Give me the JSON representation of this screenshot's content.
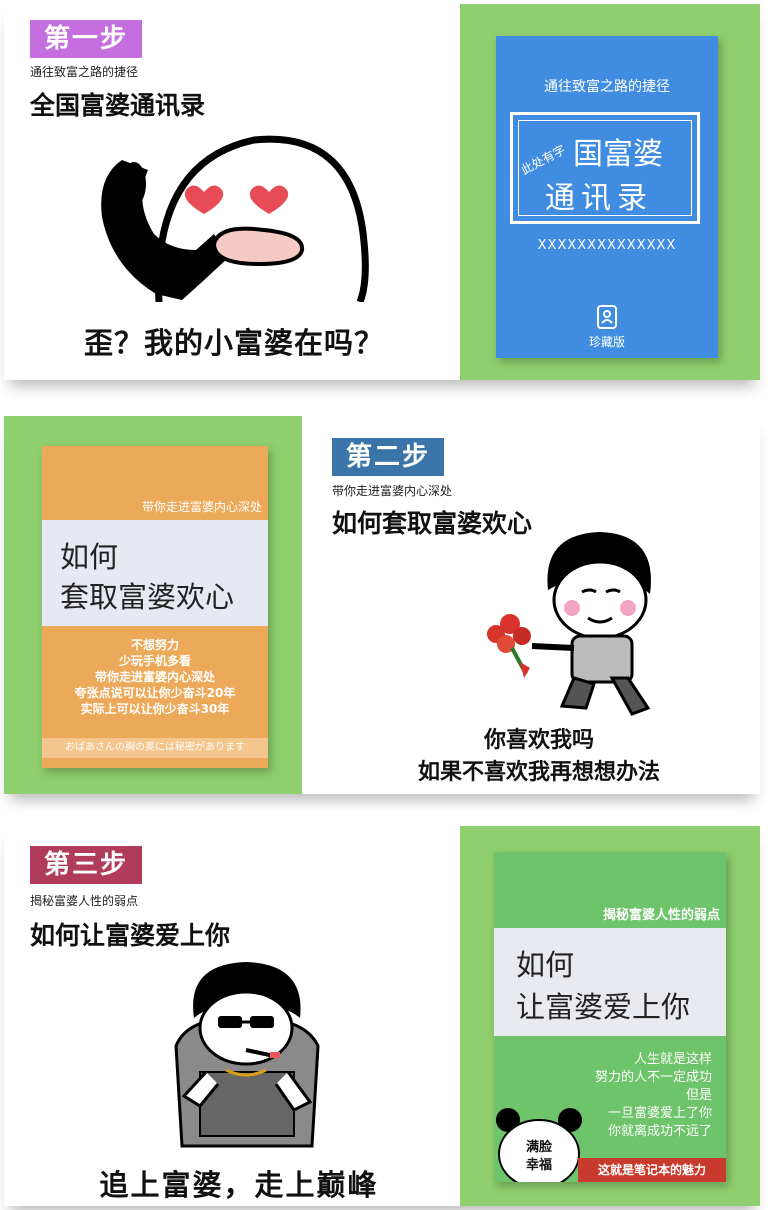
{
  "step1": {
    "badge": "第一步",
    "badge_color": "#c46ee0",
    "subtitle": "通往致富之路的捷径",
    "title": "全国富婆通讯录",
    "caption": "歪？我的小富婆在吗？",
    "book": {
      "color": "#3f8ce0",
      "top_text": "通往致富之路的捷径",
      "stamp": "此处有字",
      "line1": "国富婆",
      "line2": "通讯录",
      "xs": "XXXXXXXXXXXXXX",
      "edition": "珍藏版"
    }
  },
  "step2": {
    "badge": "第二步",
    "badge_color": "#3b74a8",
    "subtitle": "带你走进富婆内心深处",
    "title": "如何套取富婆欢心",
    "caption_line1": "你喜欢我吗",
    "caption_line2": "如果不喜欢我再想想办法",
    "book": {
      "color": "#eda95a",
      "top_text": "带你走进富婆内心深处",
      "line1": "如何",
      "line2": "套取富婆欢心",
      "lines": [
        "不想努力",
        "少玩手机多看",
        "带你走进富婆内心深处",
        "夸张点说可以让你少奋斗20年",
        "实际上可以让你少奋斗30年"
      ],
      "footer": "おばあさんの胸の奥には秘密があります"
    }
  },
  "step3": {
    "badge": "第三步",
    "badge_color": "#b03b5a",
    "subtitle": "揭秘富婆人性的弱点",
    "title": "如何让富婆爱上你",
    "caption": "追上富婆，走上巅峰",
    "book": {
      "color": "#6ec46a",
      "top_text": "揭秘富婆人性的弱点",
      "line1": "如何",
      "line2": "让富婆爱上你",
      "lines": [
        "人生就是这样",
        "努力的人不一定成功",
        "但是",
        "一旦富婆爱上了你",
        "你就离成功不远了"
      ],
      "panda_text1": "满脸",
      "panda_text2": "幸福",
      "banner": "这就是笔记本的魅力",
      "banner_color": "#c83a2c"
    }
  }
}
